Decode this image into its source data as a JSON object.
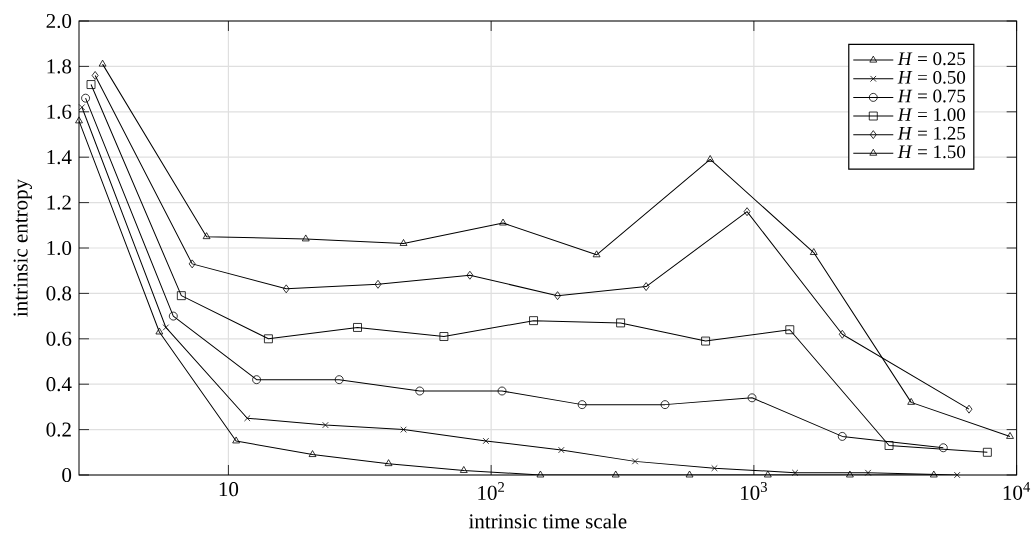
{
  "chart_data": {
    "type": "line",
    "xlabel": "intrinsic time scale",
    "ylabel": "intrinsic entropy",
    "log": "x",
    "grid": true,
    "legend": "top right",
    "xlim": [
      2.7,
      10000
    ],
    "xticks": [
      10,
      {
        "value": 100,
        "label": "10$^{2}$"
      },
      {
        "value": 1000,
        "label": "10$^{3}$"
      },
      {
        "value": 10000,
        "label": "10$^{4}$"
      }
    ],
    "ylim": [
      0,
      2
    ],
    "yticks": [
      0,
      0.2,
      0.4,
      0.6,
      0.8,
      {
        "value": 1,
        "label": "1.0"
      },
      1.2,
      1.4,
      1.6,
      1.8,
      {
        "value": 2,
        "label": "2.0"
      }
    ],
    "series": [
      {
        "name": "*H* = 0.25",
        "color": "#000000",
        "marker": "triangle",
        "x": [
          2.7,
          5.46,
          10.7,
          20.9,
          40.7,
          78.7,
          154,
          298,
          569,
          1130,
          2320,
          4840
        ],
        "values": [
          1.56,
          0.63,
          0.15,
          0.09,
          0.05,
          0.02,
          0,
          0,
          0,
          0,
          0,
          0
        ]
      },
      {
        "name": "*H* = 0.50",
        "color": "#000000",
        "marker": "cross",
        "x": [
          2.77,
          5.78,
          11.8,
          23.4,
          46.4,
          95.5,
          185,
          353,
          708,
          1435,
          2720,
          5940
        ],
        "values": [
          1.62,
          0.65,
          0.25,
          0.22,
          0.2,
          0.15,
          0.11,
          0.06,
          0.03,
          0.01,
          0.01,
          0
        ]
      },
      {
        "name": "*H* = 0.75",
        "color": "#000000",
        "marker": "circle",
        "x": [
          2.86,
          6.17,
          12.8,
          26.4,
          53.5,
          110,
          222,
          459,
          984,
          2170,
          5260
        ],
        "values": [
          1.66,
          0.7,
          0.42,
          0.42,
          0.37,
          0.37,
          0.31,
          0.31,
          0.34,
          0.17,
          0.12
        ]
      },
      {
        "name": "*H* = 1.00",
        "color": "#000000",
        "marker": "square",
        "x": [
          3.0,
          6.62,
          14.2,
          31.0,
          66.1,
          145,
          311,
          655,
          1370,
          3270,
          7740
        ],
        "values": [
          1.72,
          0.79,
          0.6,
          0.65,
          0.61,
          0.68,
          0.67,
          0.59,
          0.64,
          0.13,
          0.1
        ]
      },
      {
        "name": "*H* = 1.25",
        "color": "#000000",
        "marker": "diamond",
        "x": [
          3.11,
          7.28,
          16.6,
          37.1,
          83.0,
          179,
          389,
          942,
          2170,
          6590
        ],
        "values": [
          1.76,
          0.93,
          0.82,
          0.84,
          0.88,
          0.79,
          0.83,
          1.16,
          0.62,
          0.29
        ]
      },
      {
        "name": "*H* = 1.50",
        "color": "#000000",
        "marker": "triangle",
        "x": [
          3.32,
          8.26,
          19.7,
          46.4,
          111,
          252,
          682,
          1690,
          3970,
          9440
        ],
        "values": [
          1.81,
          1.05,
          1.04,
          1.02,
          1.11,
          0.97,
          1.39,
          0.98,
          0.32,
          0.17
        ]
      }
    ]
  }
}
